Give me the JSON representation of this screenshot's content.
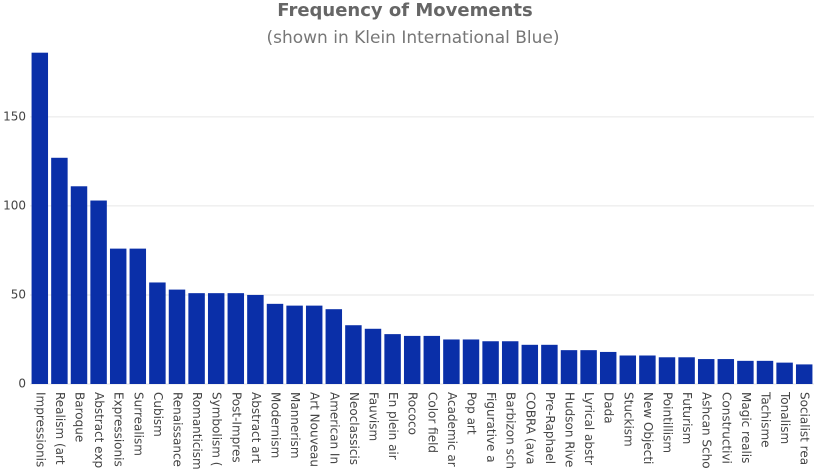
{
  "chart_data": {
    "type": "bar",
    "title": "Frequency of Movements",
    "subtitle": "(shown in Klein International Blue)",
    "categories": [
      "Impressionis",
      "Realism (art",
      "Baroque",
      "Abstract exp",
      "Expressionis",
      "Surrealism",
      "Cubism",
      "Renaissance",
      "Romanticism",
      "Symbolism (",
      "Post-Impres",
      "Abstract art",
      "Modernism",
      "Mannerism",
      "Art Nouveau",
      "American In",
      "Neoclassicis",
      "Fauvism",
      "En plein air",
      "Rococo",
      "Color field",
      "Academic ar",
      "Pop art",
      "Figurative a",
      "Barbizon sch",
      "COBRA (ava",
      "Pre-Raphael",
      "Hudson Rive",
      "Lyrical abstr",
      "Dada",
      "Stuckism",
      "New Objecti",
      "Pointillism",
      "Futurism",
      "Ashcan Scho",
      "Constructivi",
      "Magic realis",
      "Tachisme",
      "Tonalism",
      "Socialist rea"
    ],
    "values": [
      186,
      127,
      111,
      103,
      76,
      76,
      57,
      53,
      51,
      51,
      51,
      50,
      45,
      44,
      44,
      42,
      33,
      31,
      28,
      27,
      27,
      25,
      25,
      24,
      24,
      22,
      22,
      19,
      19,
      18,
      16,
      16,
      15,
      15,
      14,
      14,
      13,
      13,
      12,
      11
    ],
    "color": "#0a2fa8",
    "ylim": [
      0,
      192
    ],
    "yticks": [
      0,
      50,
      100,
      150
    ],
    "grid": true
  }
}
